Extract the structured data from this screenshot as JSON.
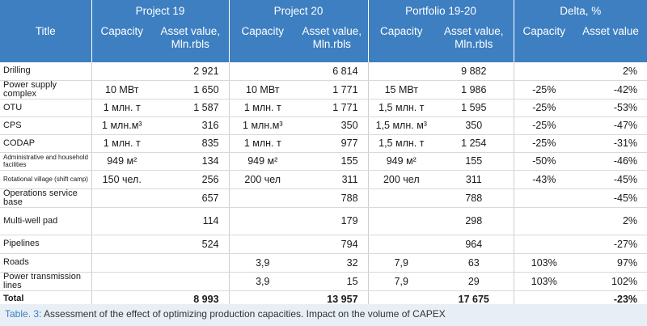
{
  "header": {
    "title": "Title",
    "groups": [
      "Project 19",
      "Project 20",
      "Portfolio 19-20",
      "Delta, %"
    ],
    "sub": [
      "Capacity",
      "Asset value,\nMln.rbls",
      "Capacity",
      "Asset value,\nMln.rbls",
      "Capacity",
      "Asset value,\nMln.rbls",
      "Capacity",
      "Asset value"
    ]
  },
  "rows": [
    {
      "name": "Drilling",
      "p19c": "",
      "p19v": "2 921",
      "p20c": "",
      "p20v": "6 814",
      "pfc": "",
      "pfv": "9 882",
      "dc": "",
      "dv": "2%"
    },
    {
      "name": "Power supply complex",
      "p19c": "10 МВт",
      "p19v": "1 650",
      "p20c": "10 МВт",
      "p20v": "1 771",
      "pfc": "15 МВт",
      "pfv": "1 986",
      "dc": "-25%",
      "dv": "-42%"
    },
    {
      "name": "OTU",
      "p19c": "1 млн. т",
      "p19v": "1 587",
      "p20c": "1 млн. т",
      "p20v": "1 771",
      "pfc": "1,5 млн. т",
      "pfv": "1 595",
      "dc": "-25%",
      "dv": "-53%"
    },
    {
      "name": "CPS",
      "p19c": "1 млн.м³",
      "p19v": "316",
      "p20c": "1 млн.м³",
      "p20v": "350",
      "pfc": "1,5 млн. м³",
      "pfv": "350",
      "dc": "-25%",
      "dv": "-47%"
    },
    {
      "name": "CODAP",
      "p19c": "1 млн. т",
      "p19v": "835",
      "p20c": "1 млн. т",
      "p20v": "977",
      "pfc": "1,5 млн. т",
      "pfv": "1 254",
      "dc": "-25%",
      "dv": "-31%"
    },
    {
      "name": "Administrative and household facilities",
      "p19c": "949 м²",
      "p19v": "134",
      "p20c": "949 м²",
      "p20v": "155",
      "pfc": "949 м²",
      "pfv": "155",
      "dc": "-50%",
      "dv": "-46%"
    },
    {
      "name": "Rotational village (shift camp)",
      "p19c": "150 чел.",
      "p19v": "256",
      "p20c": "200 чел",
      "p20v": "311",
      "pfc": "200 чел",
      "pfv": "311",
      "dc": "-43%",
      "dv": "-45%"
    },
    {
      "name": "Operations service base",
      "p19c": "",
      "p19v": "657",
      "p20c": "",
      "p20v": "788",
      "pfc": "",
      "pfv": "788",
      "dc": "",
      "dv": "-45%"
    },
    {
      "name": "Multi-well pad",
      "p19c": "",
      "p19v": "114",
      "p20c": "",
      "p20v": "179",
      "pfc": "",
      "pfv": "298",
      "dc": "",
      "dv": "2%"
    },
    {
      "name": "Pipelines",
      "p19c": "",
      "p19v": "524",
      "p20c": "",
      "p20v": "794",
      "pfc": "",
      "pfv": "964",
      "dc": "",
      "dv": "-27%"
    },
    {
      "name": "Roads",
      "p19c": "",
      "p19v": "",
      "p20c": "3,9",
      "p20v": "32",
      "pfc": "7,9",
      "pfv": "63",
      "dc": "103%",
      "dv": "97%"
    },
    {
      "name": "Power transmission lines",
      "p19c": "",
      "p19v": "",
      "p20c": "3,9",
      "p20v": "15",
      "pfc": "7,9",
      "pfv": "29",
      "dc": "103%",
      "dv": "102%"
    }
  ],
  "total": {
    "name": "Total",
    "p19v": "8 993",
    "p20v": "13 957",
    "pfv": "17 675",
    "dv": "-23%"
  },
  "caption": {
    "label": "Table. 3:",
    "text": " Assessment of the effect of optimizing production capacities. Impact on the volume of CAPEX"
  },
  "colors": {
    "header_bg": "#3d7fc1",
    "caption_bg": "#e8eef5"
  }
}
